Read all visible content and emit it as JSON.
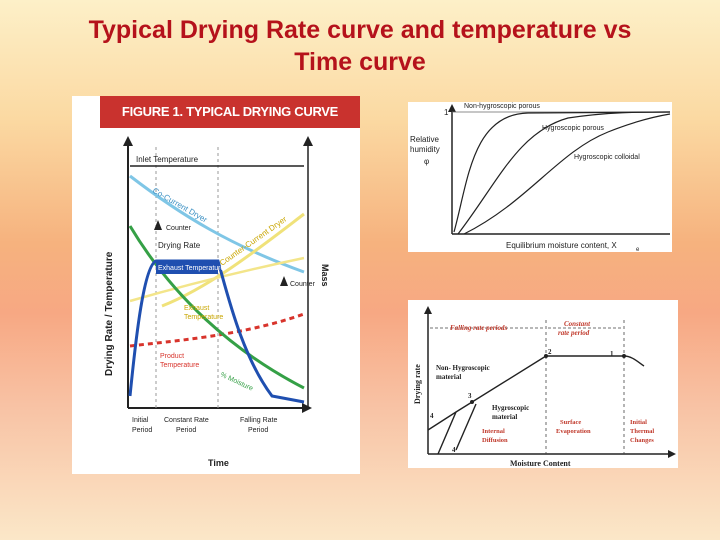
{
  "slide": {
    "title_line1": "Typical Drying Rate curve and temperature vs",
    "title_line2": "Time curve"
  },
  "figure1": {
    "header": "FIGURE 1. TYPICAL DRYING CURVE",
    "y_axis_label": "Drying Rate / Temperature",
    "right_axis_label": "Mass",
    "x_axis_label": "Time",
    "labels": {
      "inlet_temperature": "Inlet Temperature",
      "co_current_dryer": "Co-Current Dryer",
      "counter_upper": "Counter",
      "counter_current_dryer": "Counter-Current Dryer",
      "drying_rate": "Drying Rate",
      "exhaust_temperature_box": "Exhaust Temperature",
      "counter_right": "Counter",
      "exhaust_temperature_line1": "Exhaust",
      "exhaust_temperature_line2": "Temperature",
      "product_temperature_line1": "Product",
      "product_temperature_line2": "Temperature",
      "moisture": "% Moisture",
      "initial_period_line1": "Initial",
      "initial_period_line2": "Period",
      "constant_rate_line1": "Constant Rate",
      "constant_rate_line2": "Period",
      "falling_rate_line1": "Falling Rate",
      "falling_rate_line2": "Period"
    },
    "colors": {
      "drying_rate": "#1f4fb0",
      "co_current": "#7fc6e6",
      "counter_current": "#f0e27a",
      "exhaust": "#f3e58a",
      "product": "#d8342c",
      "moisture": "#35a046",
      "inlet": "#222222"
    }
  },
  "figure2": {
    "y_axis_label_line1": "Relative",
    "y_axis_label_line2": "humidity",
    "y_axis_label_line3": "φ",
    "y_tick": "1",
    "curve_non_hygroscopic": "Non-hygroscopic porous",
    "curve_hygroscopic_porous": "Hygroscopic porous",
    "curve_hygroscopic_colloidal": "Hygroscopic colloidal",
    "x_axis_label": "Equilibrium moisture content, X",
    "x_axis_subscript": "e"
  },
  "figure3": {
    "y_axis_label": "Drying rate",
    "x_axis_label": "Moisture Content",
    "falling_rate_periods": "Falling rate periods",
    "constant_rate_line1": "Constant",
    "constant_rate_line2": "rate period",
    "non_hygroscopic_line1": "Non- Hygroscopic",
    "non_hygroscopic_line2": "material",
    "hygroscopic_line1": "Hygroscopic",
    "hygroscopic_line2": "material",
    "surface_line1": "Surface",
    "surface_line2": "Evaporation",
    "internal_line1": "Internal",
    "internal_line2": "Diffusion",
    "initial_line1": "Initial",
    "initial_line2": "Thermal",
    "initial_line3": "Changes",
    "point_1": "1",
    "point_2": "2",
    "point_3": "3",
    "point_4a": "4",
    "point_4b": "4"
  }
}
